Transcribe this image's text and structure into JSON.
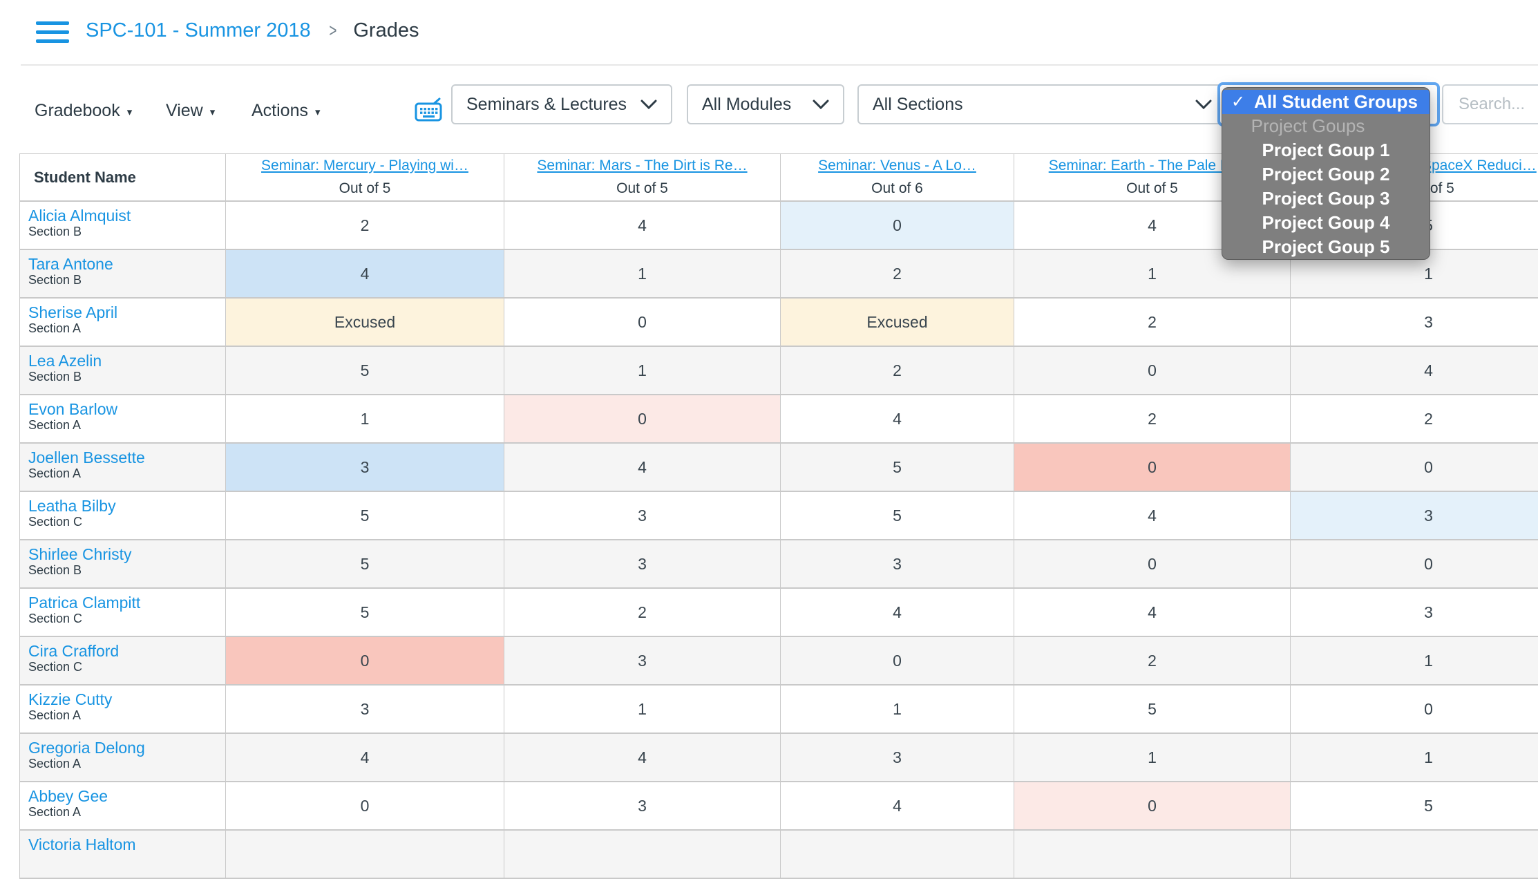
{
  "header": {
    "breadcrumb_course": "SPC-101 - Summer 2018",
    "breadcrumb_separator": ">",
    "breadcrumb_page": "Grades"
  },
  "toolbar": {
    "gradebook_menu": "Gradebook",
    "view_menu": "View",
    "actions_menu": "Actions",
    "menu_caret": "▾",
    "assignment_filter_value": "Seminars & Lectures",
    "modules_filter_value": "All Modules",
    "sections_filter_value": "All Sections",
    "search_placeholder": "Search..."
  },
  "student_groups_popup": {
    "items": [
      {
        "label": "All Student Groups",
        "selected": true,
        "check": "✓"
      },
      {
        "label": "Project Goups",
        "group": true
      },
      {
        "label": "Project Goup 1"
      },
      {
        "label": "Project Goup 2"
      },
      {
        "label": "Project Goup 3"
      },
      {
        "label": "Project Goup 4"
      },
      {
        "label": "Project Goup 5"
      }
    ]
  },
  "grid": {
    "student_col_header": "Student Name",
    "columns": [
      {
        "title": "Seminar: Mercury - Playing wi…",
        "out_of": "Out of 5"
      },
      {
        "title": "Seminar: Mars - The Dirt is Re…",
        "out_of": "Out of 5"
      },
      {
        "title": "Seminar: Venus - A Lo…",
        "out_of": "Out of 6"
      },
      {
        "title": "Seminar: Earth - The Pale Blu…",
        "out_of": "Out of 5"
      },
      {
        "title": "SpaceX Reduci…",
        "out_of": "Out of 5"
      }
    ],
    "rows": [
      {
        "name": "Alicia Almquist",
        "section": "Section B",
        "grades": [
          {
            "v": "2"
          },
          {
            "v": "4"
          },
          {
            "v": "0",
            "hl": "lightblue"
          },
          {
            "v": "4"
          },
          {
            "v": "5"
          }
        ]
      },
      {
        "name": "Tara Antone",
        "section": "Section B",
        "grades": [
          {
            "v": "4",
            "hl": "blue"
          },
          {
            "v": "1"
          },
          {
            "v": "2"
          },
          {
            "v": "1"
          },
          {
            "v": "1"
          }
        ]
      },
      {
        "name": "Sherise April",
        "section": "Section A",
        "grades": [
          {
            "v": "Excused",
            "hl": "cream"
          },
          {
            "v": "0"
          },
          {
            "v": "Excused",
            "hl": "cream"
          },
          {
            "v": "2"
          },
          {
            "v": "3"
          }
        ]
      },
      {
        "name": "Lea Azelin",
        "section": "Section B",
        "grades": [
          {
            "v": "5"
          },
          {
            "v": "1"
          },
          {
            "v": "2"
          },
          {
            "v": "0"
          },
          {
            "v": "4"
          }
        ]
      },
      {
        "name": "Evon Barlow",
        "section": "Section A",
        "grades": [
          {
            "v": "1"
          },
          {
            "v": "0",
            "hl": "pink"
          },
          {
            "v": "4"
          },
          {
            "v": "2"
          },
          {
            "v": "2"
          }
        ]
      },
      {
        "name": "Joellen Bessette",
        "section": "Section A",
        "grades": [
          {
            "v": "3",
            "hl": "blue"
          },
          {
            "v": "4"
          },
          {
            "v": "5"
          },
          {
            "v": "0",
            "hl": "salmon"
          },
          {
            "v": "0"
          }
        ]
      },
      {
        "name": "Leatha Bilby",
        "section": "Section C",
        "grades": [
          {
            "v": "5"
          },
          {
            "v": "3"
          },
          {
            "v": "5"
          },
          {
            "v": "4"
          },
          {
            "v": "3",
            "hl": "lightblue"
          }
        ]
      },
      {
        "name": "Shirlee Christy",
        "section": "Section B",
        "grades": [
          {
            "v": "5"
          },
          {
            "v": "3"
          },
          {
            "v": "3"
          },
          {
            "v": "0"
          },
          {
            "v": "0"
          }
        ]
      },
      {
        "name": "Patrica Clampitt",
        "section": "Section C",
        "grades": [
          {
            "v": "5"
          },
          {
            "v": "2"
          },
          {
            "v": "4"
          },
          {
            "v": "4"
          },
          {
            "v": "3"
          }
        ]
      },
      {
        "name": "Cira Crafford",
        "section": "Section C",
        "grades": [
          {
            "v": "0",
            "hl": "salmon"
          },
          {
            "v": "3"
          },
          {
            "v": "0"
          },
          {
            "v": "2"
          },
          {
            "v": "1"
          }
        ]
      },
      {
        "name": "Kizzie Cutty",
        "section": "Section A",
        "grades": [
          {
            "v": "3"
          },
          {
            "v": "1"
          },
          {
            "v": "1"
          },
          {
            "v": "5"
          },
          {
            "v": "0"
          }
        ]
      },
      {
        "name": "Gregoria Delong",
        "section": "Section A",
        "grades": [
          {
            "v": "4"
          },
          {
            "v": "4"
          },
          {
            "v": "3"
          },
          {
            "v": "1"
          },
          {
            "v": "1"
          }
        ]
      },
      {
        "name": "Abbey Gee",
        "section": "Section A",
        "grades": [
          {
            "v": "0"
          },
          {
            "v": "3"
          },
          {
            "v": "4"
          },
          {
            "v": "0",
            "hl": "pink"
          },
          {
            "v": "5"
          }
        ]
      },
      {
        "name": "Victoria Haltom",
        "section": "",
        "grades": [
          {
            "v": ""
          },
          {
            "v": ""
          },
          {
            "v": ""
          },
          {
            "v": ""
          },
          {
            "v": ""
          }
        ]
      }
    ]
  },
  "colors": {
    "link_blue": "#1894e2",
    "dark_text": "#2d3b45",
    "row_stripe": "#f5f5f5",
    "grid_border": "#c9c9c9",
    "highlight_blue": "#cde3f6",
    "highlight_lightblue": "#e4f1fa",
    "highlight_cream": "#fdf3dd",
    "highlight_salmon": "#f9c6bd",
    "highlight_pink": "#fce9e6",
    "popup_bg": "#7f7f7f",
    "popup_selected": "#3d7ee8"
  }
}
